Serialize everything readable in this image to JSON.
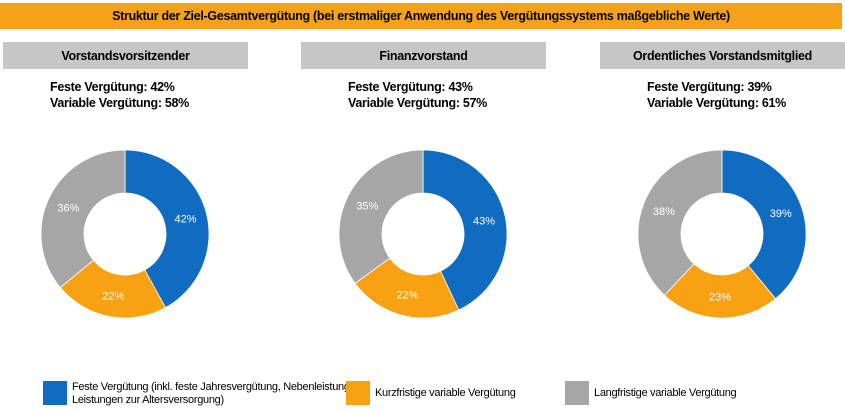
{
  "banner": "Struktur der Ziel-Gesamtvergütung (bei erstmaliger Anwendung des Vergütungssystems maßgebliche Werte)",
  "colors": {
    "feste": "#0f6cc0",
    "kurz": "#f8a113",
    "lang": "#a6a6a6",
    "header_bg": "#c6c6c6",
    "banner_bg": "#f7a11a"
  },
  "chart_data": [
    {
      "type": "pie",
      "title": "Vorstandsvorsitzender",
      "summary": [
        "Feste Vergütung: 42%",
        "Variable Vergütung: 58%"
      ],
      "slices": [
        {
          "name": "Feste Vergütung (inkl. feste Jahresvergütung, Nebenleistungen, Leistungen zur Altersversorgung)",
          "value": 42,
          "label": "42%"
        },
        {
          "name": "Kurzfristige variable Vergütung",
          "value": 22,
          "label": "22%"
        },
        {
          "name": "Langfristige variable Vergütung",
          "value": 36,
          "label": "36%"
        }
      ]
    },
    {
      "type": "pie",
      "title": "Finanzvorstand",
      "summary": [
        "Feste Vergütung: 43%",
        "Variable Vergütung: 57%"
      ],
      "slices": [
        {
          "name": "Feste Vergütung (inkl. feste Jahresvergütung, Nebenleistungen, Leistungen zur Altersversorgung)",
          "value": 43,
          "label": "43%"
        },
        {
          "name": "Kurzfristige variable Vergütung",
          "value": 22,
          "label": "22%"
        },
        {
          "name": "Langfristige variable Vergütung",
          "value": 35,
          "label": "35%"
        }
      ]
    },
    {
      "type": "pie",
      "title": "Ordentliches Vorstandsmitglied",
      "summary": [
        "Feste Vergütung: 39%",
        "Variable Vergütung: 61%"
      ],
      "slices": [
        {
          "name": "Feste Vergütung (inkl. feste Jahresvergütung, Nebenleistungen, Leistungen zur Altersversorgung)",
          "value": 39,
          "label": "39%"
        },
        {
          "name": "Kurzfristige variable Vergütung",
          "value": 23,
          "label": "23%"
        },
        {
          "name": "Langfristige variable Vergütung",
          "value": 38,
          "label": "38%"
        }
      ]
    }
  ],
  "legend": [
    {
      "line1": "Feste Vergütung (inkl. feste Jahresvergütung, Nebenleistungen,",
      "line2": "Leistungen zur Altersversorgung)"
    },
    {
      "line1": "Kurzfristige variable Vergütung",
      "line2": ""
    },
    {
      "line1": "Langfristige variable Vergütung",
      "line2": ""
    }
  ]
}
